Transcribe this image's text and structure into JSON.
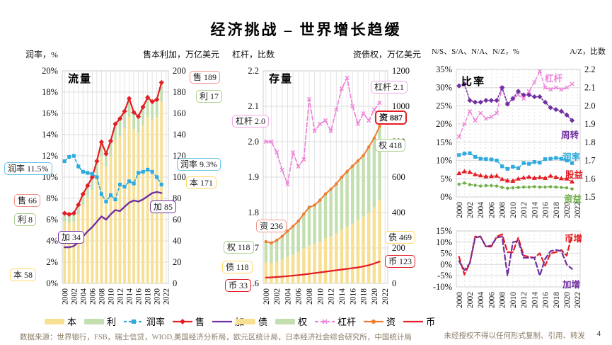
{
  "title": "经济挑战 – 世界增长趋缓",
  "page_number": "4",
  "footer": {
    "source": "数据来源：世界银行，FSB，瑞士信贷，WIOD,美国经济分析局，欧元区统计局，日本经济社会综合研究所，中国统计局",
    "rights": "未经授权不得以任何形式复制、引用、转发"
  },
  "colors": {
    "bar_yellow": "#F7DF94",
    "bar_green": "#C3DFB0",
    "blue": "#2FAADC",
    "red": "#E31E24",
    "purple": "#7030A0",
    "pink": "#EE82D9",
    "orange": "#ED7D31",
    "green": "#70AD47",
    "grid": "#DCDCDC"
  },
  "chart_data": [
    {
      "id": "flow",
      "label": "流量",
      "type": "bar+line",
      "x_years": [
        2000,
        2001,
        2002,
        2003,
        2004,
        2005,
        2006,
        2007,
        2008,
        2009,
        2010,
        2011,
        2012,
        2013,
        2014,
        2015,
        2016,
        2017,
        2018,
        2019,
        2020,
        2021
      ],
      "x_ticks": [
        "2000",
        "2002",
        "2004",
        "2006",
        "2008",
        "2010",
        "2012",
        "2014",
        "2016",
        "2018",
        "2020",
        "2022"
      ],
      "axis_left": {
        "title": "润率，%",
        "min": 0,
        "max": 20,
        "ticks": [
          "20%",
          "18%",
          "16%",
          "14%",
          "12%",
          "10%",
          "8%",
          "6%",
          "4%",
          "2%",
          "0%"
        ]
      },
      "axis_right": {
        "title": "售本利加，万亿美元",
        "min": 0,
        "max": 200,
        "ticks": [
          "200",
          "180",
          "160",
          "140",
          "120",
          "100",
          "80",
          "60",
          "40",
          "20",
          "0"
        ]
      },
      "bars": [
        {
          "name": "本",
          "color": "#F7DF94",
          "values": [
            58,
            57,
            58,
            65,
            74,
            81,
            88,
            102,
            119,
            110,
            120,
            135,
            139,
            146,
            157,
            145,
            142,
            149,
            157,
            154,
            157,
            171
          ]
        },
        {
          "name": "利",
          "color": "#C3DFB0",
          "values": [
            8,
            8,
            8,
            9,
            10,
            11,
            12,
            13,
            14,
            12,
            14,
            15,
            16,
            16,
            17,
            16,
            15,
            17,
            18,
            17,
            16,
            17
          ]
        }
      ],
      "series": [
        {
          "name": "售",
          "axis": "r",
          "color": "#E31E24",
          "width": 2.2,
          "dash": "",
          "marker": "diamond",
          "values": [
            66,
            65,
            66,
            74,
            84,
            92,
            100,
            115,
            133,
            122,
            134,
            150,
            155,
            162,
            174,
            161,
            157,
            166,
            175,
            171,
            173,
            189
          ]
        },
        {
          "name": "润率",
          "axis": "l",
          "color": "#2FAADC",
          "width": 1.7,
          "dash": "4 3",
          "marker": "square",
          "values": [
            11.5,
            11.9,
            12.0,
            11.0,
            10.5,
            10.4,
            10.3,
            10.0,
            8.4,
            7.7,
            8.3,
            7.9,
            9.3,
            9.1,
            9.6,
            9.4,
            10.4,
            10.5,
            10.7,
            10.5,
            10.0,
            9.3
          ]
        },
        {
          "name": "加",
          "axis": "r",
          "color": "#7030A0",
          "width": 2.4,
          "dash": "",
          "marker": "",
          "values": [
            34,
            34,
            35,
            39,
            44,
            49,
            53,
            58,
            63,
            60,
            65,
            69,
            68,
            72,
            76,
            78,
            77,
            79,
            82,
            85,
            86,
            85
          ]
        }
      ]
    },
    {
      "id": "stock",
      "label": "存量",
      "type": "bar+line",
      "x_years": [
        2000,
        2001,
        2002,
        2003,
        2004,
        2005,
        2006,
        2007,
        2008,
        2009,
        2010,
        2011,
        2012,
        2013,
        2014,
        2015,
        2016,
        2017,
        2018,
        2019,
        2020,
        2021
      ],
      "x_ticks": [
        "2000",
        "2002",
        "2004",
        "2006",
        "2008",
        "2010",
        "2012",
        "2014",
        "2016",
        "2018",
        "2020",
        "2022"
      ],
      "axis_left": {
        "title": "杠杆，比数",
        "min": 1.6,
        "max": 2.2,
        "ticks": [
          "2.2",
          "2.1",
          "2.0",
          "1.9",
          "1.8",
          "1.7",
          "1.6"
        ]
      },
      "axis_right": {
        "title": "资债权，万亿美元",
        "min": 0,
        "max": 1200,
        "ticks": [
          "1200",
          "1000",
          "800",
          "600",
          "400",
          "200",
          "0"
        ]
      },
      "bars": [
        {
          "name": "债",
          "color": "#F7DF94",
          "values": [
            118,
            114,
            122,
            134,
            148,
            162,
            177,
            197,
            215,
            222,
            236,
            254,
            267,
            282,
            301,
            322,
            337,
            357,
            377,
            400,
            430,
            469
          ]
        },
        {
          "name": "权",
          "color": "#C3DFB0",
          "values": [
            118,
            114,
            121,
            132,
            147,
            160,
            175,
            195,
            215,
            220,
            234,
            251,
            265,
            280,
            299,
            310,
            325,
            335,
            345,
            370,
            390,
            418
          ]
        }
      ],
      "series": [
        {
          "name": "杠杆",
          "axis": "l",
          "color": "#EE82D9",
          "width": 1.7,
          "dash": "6 3",
          "marker": "x",
          "values": [
            2.0,
            2.0,
            1.97,
            1.92,
            1.88,
            1.97,
            1.93,
            1.95,
            2.12,
            2.03,
            2.05,
            2.06,
            2.03,
            2.09,
            2.15,
            2.18,
            2.1,
            2.05,
            2.08,
            2.06,
            2.09,
            2.11
          ]
        },
        {
          "name": "资",
          "axis": "r",
          "color": "#ED7D31",
          "width": 2,
          "dash": "",
          "marker": "dot",
          "values": [
            236,
            228,
            243,
            266,
            295,
            322,
            352,
            392,
            430,
            442,
            470,
            505,
            532,
            562,
            600,
            632,
            662,
            692,
            722,
            770,
            820,
            887
          ]
        },
        {
          "name": "币",
          "axis": "r",
          "color": "#E31E24",
          "width": 2.2,
          "dash": "",
          "marker": "",
          "values": [
            33,
            34,
            36,
            38,
            41,
            44,
            47,
            50,
            54,
            58,
            62,
            66,
            70,
            74,
            78,
            82,
            86,
            90,
            96,
            103,
            112,
            123
          ]
        }
      ]
    },
    {
      "id": "ratio",
      "label": "比率",
      "type": "line",
      "x_years": [
        2000,
        2001,
        2002,
        2003,
        2004,
        2005,
        2006,
        2007,
        2008,
        2009,
        2010,
        2011,
        2012,
        2013,
        2014,
        2015,
        2016,
        2017,
        2018,
        2019,
        2020,
        2021
      ],
      "x_ticks": [
        "2000",
        "2002",
        "2004",
        "2006",
        "2008",
        "2010",
        "2012",
        "2014",
        "2016",
        "2018",
        "2020",
        "2022"
      ],
      "axis_left": {
        "title": "N/S、S/A、N/A、N/Z，%",
        "min": 0,
        "max": 35,
        "ticks": [
          "35%",
          "30%",
          "25%",
          "20%",
          "15%",
          "10%",
          "5%",
          "0%"
        ]
      },
      "axis_right": {
        "title": "A/Z，比数",
        "min": 1.5,
        "max": 2.2,
        "ticks": [
          "2.2",
          "2.1",
          "2.0",
          "1.9",
          "1.8",
          "1.7",
          "1.6",
          "1.5"
        ]
      },
      "bars": [],
      "series": [
        {
          "name": "杠杆",
          "axis": "r",
          "color": "#EE82D9",
          "width": 1.4,
          "dash": "5 3",
          "marker": "x",
          "values": [
            1.83,
            1.9,
            1.97,
            1.92,
            1.96,
            1.93,
            1.94,
            1.96,
            2.1,
            2.01,
            2.04,
            2.06,
            2.04,
            2.08,
            2.13,
            2.19,
            2.1,
            2.09,
            2.1,
            2.09,
            2.1,
            2.12
          ]
        },
        {
          "name": "周转",
          "axis": "l",
          "color": "#7030A0",
          "width": 1.6,
          "dash": "2 2.5",
          "marker": "diamond",
          "values": [
            30.5,
            31,
            26.5,
            26,
            26,
            26.5,
            26.5,
            26.5,
            30,
            25.5,
            27,
            29,
            28,
            28,
            27.5,
            27.5,
            26,
            24.5,
            24,
            23.5,
            22.5,
            21
          ]
        },
        {
          "name": "润率",
          "axis": "l",
          "color": "#2FAADC",
          "width": 1.6,
          "dash": "2 2.5",
          "marker": "square",
          "values": [
            11.5,
            11.9,
            12.0,
            11.0,
            10.5,
            10.4,
            10.3,
            10.0,
            8.4,
            7.7,
            8.3,
            7.9,
            9.3,
            9.1,
            9.6,
            9.4,
            10.4,
            10.5,
            10.7,
            10.5,
            10.0,
            9.3
          ]
        },
        {
          "name": "股益",
          "axis": "l",
          "color": "#E31E24",
          "width": 1.4,
          "dash": "2 2.5",
          "marker": "triangle",
          "values": [
            6.5,
            7.0,
            6.8,
            6.2,
            5.9,
            5.6,
            5.7,
            5.8,
            4.9,
            4.5,
            4.4,
            5.0,
            5.3,
            5.5,
            5.2,
            5.4,
            5.2,
            5.8,
            5.4,
            5.1,
            5.0,
            4.2
          ]
        },
        {
          "name": "资益",
          "axis": "l",
          "color": "#70AD47",
          "width": 1.4,
          "dash": "2 2.5",
          "marker": "dot",
          "values": [
            3.5,
            3.8,
            3.4,
            3.2,
            3.0,
            3.1,
            3.1,
            3.0,
            2.6,
            2.4,
            2.5,
            2.6,
            2.7,
            2.7,
            2.8,
            2.7,
            2.7,
            2.8,
            2.7,
            2.6,
            2.5,
            2.2
          ]
        }
      ]
    },
    {
      "id": "growth",
      "label": "",
      "type": "line",
      "x_years": [
        2000,
        2001,
        2002,
        2003,
        2004,
        2005,
        2006,
        2007,
        2008,
        2009,
        2010,
        2011,
        2012,
        2013,
        2014,
        2015,
        2016,
        2017,
        2018,
        2019,
        2020,
        2021
      ],
      "x_ticks": [
        "2000",
        "2002",
        "2004",
        "2006",
        "2008",
        "2010",
        "2012",
        "2014",
        "2016",
        "2018",
        "2020",
        "2022"
      ],
      "axis_left": {
        "title": "",
        "min": -10,
        "max": 15,
        "ticks": [
          "15%",
          "10%",
          "5%",
          "0%",
          "-5%",
          "-10%"
        ]
      },
      "axis_right": null,
      "bars": [],
      "series": [
        {
          "name": "币增",
          "axis": "l",
          "color": "#E31E24",
          "width": 2.2,
          "dash": "7 4",
          "marker": "",
          "values": [
            3.5,
            -4.5,
            0.5,
            12.5,
            12.5,
            8,
            8,
            12.5,
            13.5,
            5.5,
            5.5,
            12,
            4,
            3.5,
            3,
            5,
            -0.5,
            5,
            5.5,
            6.5,
            4,
            13.5
          ]
        },
        {
          "name": "加增",
          "axis": "l",
          "color": "#7030A0",
          "width": 2.2,
          "dash": "7 4",
          "marker": "",
          "values": [
            1.5,
            -2.5,
            0.5,
            12,
            12.5,
            8,
            8.5,
            12,
            12.5,
            -5,
            10,
            10.5,
            3,
            3,
            3,
            -5,
            2.5,
            6,
            6.5,
            6,
            0,
            -2
          ]
        }
      ]
    }
  ],
  "legends": [
    {
      "items": [
        {
          "label": "本",
          "marker": "bar",
          "color": "#F7DF94"
        },
        {
          "label": "利",
          "marker": "bar",
          "color": "#C3DFB0"
        },
        {
          "label": "润率",
          "marker": "dash-square",
          "color": "#2FAADC"
        },
        {
          "label": "售",
          "marker": "line-diamond",
          "color": "#E31E24"
        },
        {
          "label": "加",
          "marker": "line",
          "color": "#7030A0"
        }
      ]
    },
    {
      "items": [
        {
          "label": "债",
          "marker": "bar",
          "color": "#F7DF94"
        },
        {
          "label": "权",
          "marker": "bar",
          "color": "#C3DFB0"
        },
        {
          "label": "杠杆",
          "marker": "dash-x",
          "color": "#EE82D9"
        },
        {
          "label": "资",
          "marker": "line-dot",
          "color": "#ED7D31"
        },
        {
          "label": "币",
          "marker": "line",
          "color": "#E31E24"
        }
      ]
    }
  ],
  "callouts": [
    {
      "id": "runlv-start",
      "text": "润率 11.5%"
    },
    {
      "id": "shou-start",
      "text": "售 66"
    },
    {
      "id": "li-start",
      "text": "利 8"
    },
    {
      "id": "jia-start",
      "text": "加 34"
    },
    {
      "id": "ben-start",
      "text": "本 58"
    },
    {
      "id": "shou-end",
      "text": "售 189"
    },
    {
      "id": "li-end",
      "text": "利 17"
    },
    {
      "id": "runlv-end",
      "text": "润率 9.3%"
    },
    {
      "id": "ben-end",
      "text": "本 171"
    },
    {
      "id": "jia-end",
      "text": "加 85"
    },
    {
      "id": "ganggan-start",
      "text": "杠杆 2.0"
    },
    {
      "id": "zi-start",
      "text": "资 236"
    },
    {
      "id": "quan-start",
      "text": "权 118"
    },
    {
      "id": "zhai-start",
      "text": "债 118"
    },
    {
      "id": "bi-start",
      "text": "币 33"
    },
    {
      "id": "ganggan-end",
      "text": "杠杆 2.1"
    },
    {
      "id": "zi-end",
      "text": "资 887"
    },
    {
      "id": "quan-end",
      "text": "权 418"
    },
    {
      "id": "zhai-end",
      "text": "债 469"
    },
    {
      "id": "bi-end",
      "text": "币 123"
    }
  ]
}
